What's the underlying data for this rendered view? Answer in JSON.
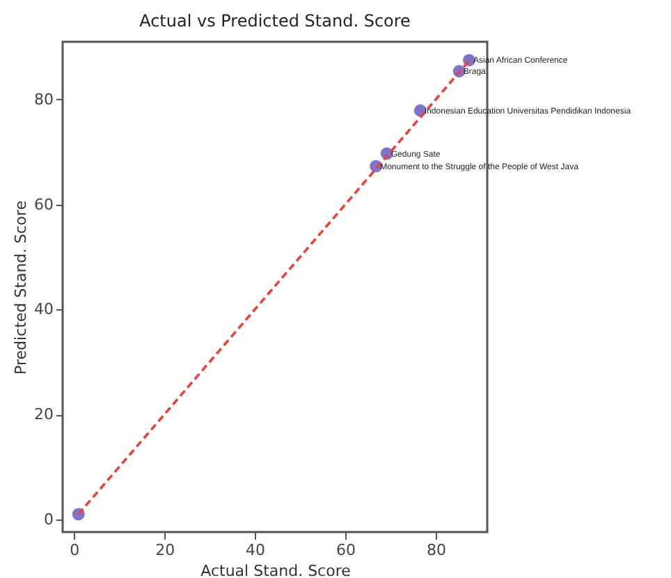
{
  "chart_data": {
    "type": "scatter",
    "title": "Actual vs Predicted Stand. Score",
    "xlabel": "Actual Stand. Score",
    "ylabel": "Predicted Stand. Score",
    "x": [
      1,
      66.8,
      69.2,
      76.6,
      85.2,
      87.4
    ],
    "series": [
      {
        "color": "#7066c4",
        "values": [
          1,
          67.3,
          69.7,
          77.9,
          85.4,
          87.5
        ]
      },
      {
        "type": "line",
        "color": "#e8423a",
        "line_style": "dashed",
        "marker": "none",
        "x": [
          1,
          87.4
        ],
        "values": [
          1,
          87.4
        ]
      }
    ],
    "annotations": [
      {
        "text": "Monument to the Struggle of the People of West Java",
        "x": 66.8,
        "y": 67.3
      },
      {
        "text": "Gedung Sate",
        "x": 69.2,
        "y": 69.7
      },
      {
        "text": "Indonesian Education  Universitas Pendidikan Indonesia",
        "x": 76.6,
        "y": 77.9
      },
      {
        "text": "Braga",
        "x": 85.2,
        "y": 85.4
      },
      {
        "text": "Asian African Conference",
        "x": 87.4,
        "y": 87.5
      }
    ],
    "xlim": [
      -2.5,
      91.4
    ],
    "ylim": [
      -2.4,
      91
    ],
    "xticks": [
      0,
      20,
      40,
      60,
      80
    ],
    "yticks": [
      0,
      20,
      40,
      60,
      80
    ],
    "grid": false
  }
}
